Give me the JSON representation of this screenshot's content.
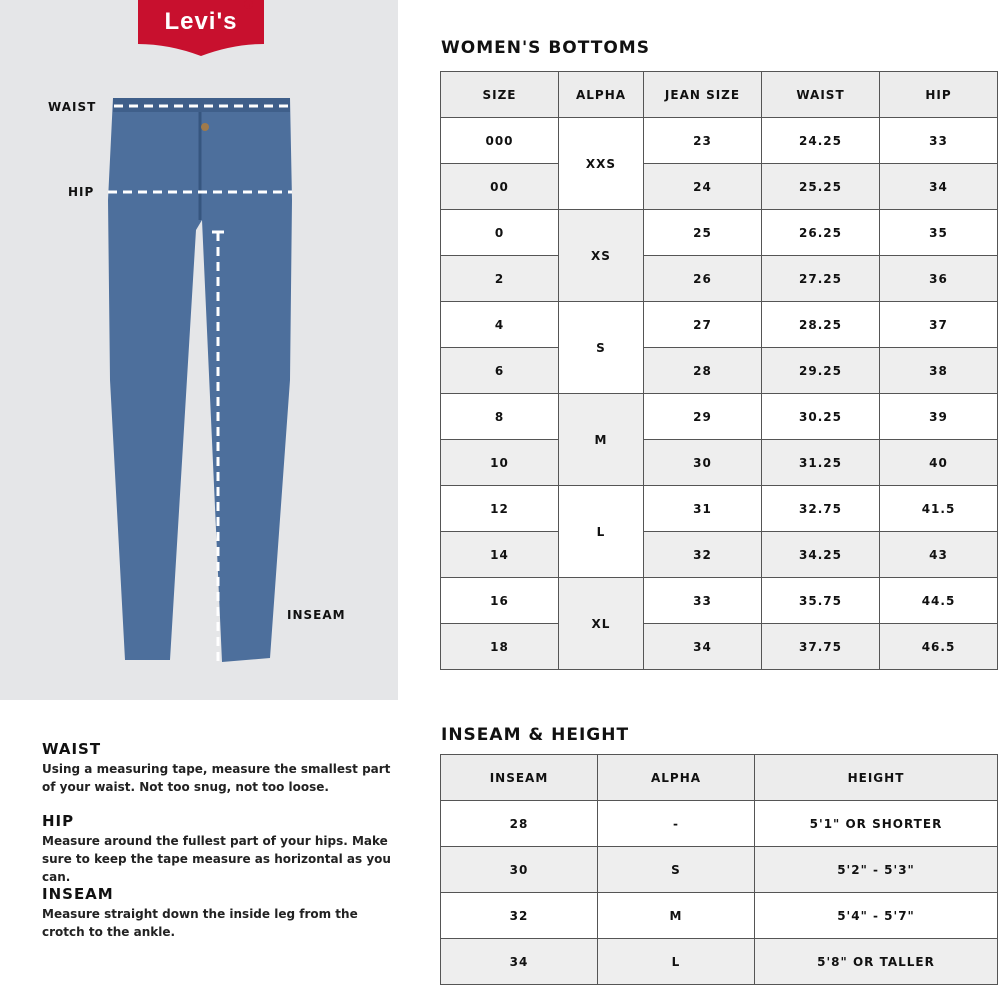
{
  "logo": {
    "text": "Levi's",
    "registered": "®",
    "color": "#c8102e"
  },
  "figure_labels": {
    "waist": "WAIST",
    "hip": "HIP",
    "inseam": "INSEAM"
  },
  "bottoms": {
    "title": "WOMEN'S BOTTOMS",
    "headers": [
      "SIZE",
      "ALPHA",
      "JEAN SIZE",
      "WAIST",
      "HIP"
    ],
    "rows": [
      {
        "size": "000",
        "alpha": "XXS",
        "jean": "23",
        "waist": "24.25",
        "hip": "33"
      },
      {
        "size": "00",
        "jean": "24",
        "waist": "25.25",
        "hip": "34"
      },
      {
        "size": "0",
        "alpha": "XS",
        "jean": "25",
        "waist": "26.25",
        "hip": "35"
      },
      {
        "size": "2",
        "jean": "26",
        "waist": "27.25",
        "hip": "36"
      },
      {
        "size": "4",
        "alpha": "S",
        "jean": "27",
        "waist": "28.25",
        "hip": "37"
      },
      {
        "size": "6",
        "jean": "28",
        "waist": "29.25",
        "hip": "38"
      },
      {
        "size": "8",
        "alpha": "M",
        "jean": "29",
        "waist": "30.25",
        "hip": "39"
      },
      {
        "size": "10",
        "jean": "30",
        "waist": "31.25",
        "hip": "40"
      },
      {
        "size": "12",
        "alpha": "L",
        "jean": "31",
        "waist": "32.75",
        "hip": "41.5"
      },
      {
        "size": "14",
        "jean": "32",
        "waist": "34.25",
        "hip": "43"
      },
      {
        "size": "16",
        "alpha": "XL",
        "jean": "33",
        "waist": "35.75",
        "hip": "44.5"
      },
      {
        "size": "18",
        "jean": "34",
        "waist": "37.75",
        "hip": "46.5"
      }
    ]
  },
  "inseam": {
    "title": "INSEAM & HEIGHT",
    "headers": [
      "INSEAM",
      "ALPHA",
      "HEIGHT"
    ],
    "rows": [
      [
        "28",
        "-",
        "5'1\" OR SHORTER"
      ],
      [
        "30",
        "S",
        "5'2\" - 5'3\""
      ],
      [
        "32",
        "M",
        "5'4\" - 5'7\""
      ],
      [
        "34",
        "L",
        "5'8\" OR TALLER"
      ]
    ]
  },
  "help": [
    {
      "title": "WAIST",
      "text": "Using a measuring tape, measure the smallest part of your waist. Not too snug, not too loose."
    },
    {
      "title": "HIP",
      "text": "Measure around the fullest part of your hips. Make sure to keep the tape measure as horizontal as you can."
    },
    {
      "title": "INSEAM",
      "text": "Measure straight down the inside leg from the crotch to the ankle."
    }
  ]
}
